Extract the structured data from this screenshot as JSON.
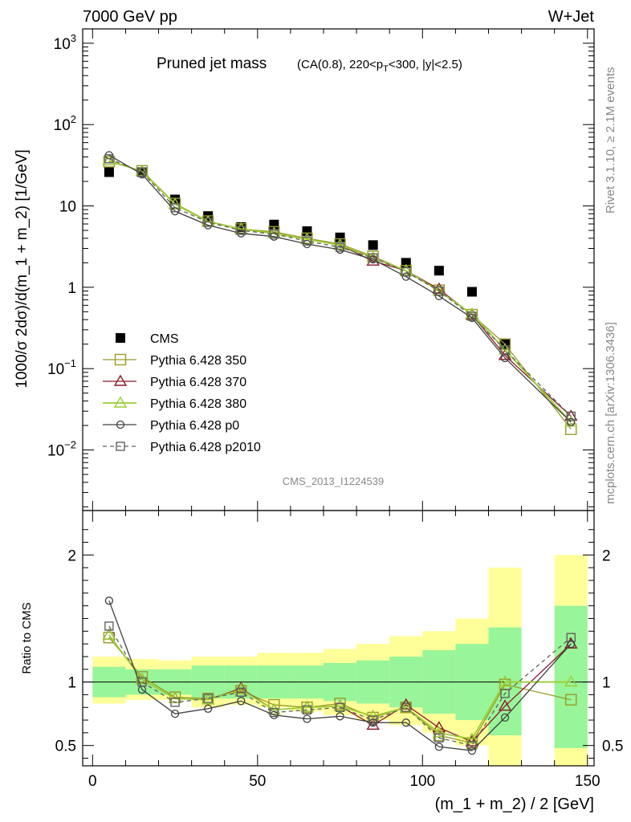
{
  "header": {
    "left": "7000 GeV pp",
    "right": "W+Jet"
  },
  "plot_title_main": "Pruned jet mass",
  "plot_title_sub": "(CA(0.8), 220<p",
  "plot_title_sub_index": "T",
  "plot_title_sub_end": "<300, |y|<2.5)",
  "side_label_top": "Rivet 3.1.10, ≥ 2.1M events",
  "side_label_bottom": "mcplots.cern.ch [arXiv:1306.3436]",
  "analysis_id": "CMS_2013_I1224539",
  "colors": {
    "cms": "#000000",
    "p350": "#9a9a2a",
    "p370": "#8b1a2b",
    "p380": "#9acd32",
    "p0": "#404040",
    "p2010": "#606060",
    "band_inner": "#99f599",
    "band_outer": "#ffff99"
  },
  "chart_data": [
    {
      "type": "scatter",
      "ylabel": "1000/σ 2dσ)/d(m_1 + m_2) [1/GeV]",
      "yscale": "log",
      "ylim": [
        0.0018,
        1500
      ],
      "xlim": [
        -3,
        152
      ],
      "y_ticks": [
        {
          "v": 1000,
          "base": "10",
          "exp": "3"
        },
        {
          "v": 100,
          "base": "10",
          "exp": "2"
        },
        {
          "v": 10,
          "base": "10",
          "exp": ""
        },
        {
          "v": 1,
          "base": "1",
          "exp": ""
        },
        {
          "v": 0.1,
          "base": "10",
          "exp": "−1"
        },
        {
          "v": 0.01,
          "base": "10",
          "exp": "−2"
        }
      ],
      "x": [
        5,
        15,
        25,
        35,
        45,
        55,
        65,
        75,
        85,
        95,
        105,
        115,
        125,
        145
      ],
      "series": [
        {
          "name": "CMS",
          "key": "cms",
          "marker": "filled-square",
          "values": [
            26,
            26,
            12,
            7.5,
            5.5,
            5.9,
            4.9,
            4.1,
            3.3,
            2.0,
            1.6,
            0.88,
            0.2,
            null
          ]
        },
        {
          "name": "Pythia 6.428 350",
          "key": "p350",
          "marker": "open-square",
          "values": [
            35,
            27,
            10.7,
            6.5,
            5.2,
            4.8,
            4.0,
            3.4,
            2.4,
            1.6,
            0.92,
            0.46,
            0.2,
            0.018
          ]
        },
        {
          "name": "Pythia 6.428 370",
          "key": "p370",
          "marker": "open-triangle",
          "values": [
            36,
            26.5,
            10.5,
            6.4,
            5.2,
            4.6,
            3.9,
            3.3,
            2.1,
            1.6,
            0.95,
            0.46,
            0.145,
            0.026
          ]
        },
        {
          "name": "Pythia 6.428 380",
          "key": "p380",
          "marker": "open-triangle",
          "values": [
            36,
            26.5,
            10.5,
            6.4,
            5.2,
            4.6,
            3.9,
            3.3,
            2.3,
            1.6,
            0.9,
            0.47,
            0.17,
            0.022
          ]
        },
        {
          "name": "Pythia 6.428 p0",
          "key": "p0",
          "marker": "open-circle",
          "values": [
            42,
            24.5,
            8.6,
            5.8,
            4.6,
            4.2,
            3.4,
            2.9,
            2.2,
            1.35,
            0.78,
            0.42,
            0.135,
            0.022
          ]
        },
        {
          "name": "Pythia 6.428 p2010",
          "key": "p2010",
          "marker": "open-square-dashed",
          "values": [
            38,
            26,
            9.5,
            6.3,
            5.0,
            4.5,
            3.7,
            3.1,
            2.3,
            1.55,
            0.9,
            0.44,
            0.17,
            0.026
          ]
        }
      ]
    },
    {
      "type": "scatter",
      "xlabel": "(m_1 + m_2) / 2 [GeV]",
      "ylabel": "Ratio to CMS",
      "ylim": [
        0.34,
        2.35
      ],
      "xlim": [
        -3,
        152
      ],
      "x_ticks": [
        0,
        50,
        100,
        150
      ],
      "y_ticks": [
        0.5,
        1,
        2
      ],
      "x": [
        5,
        15,
        25,
        35,
        45,
        55,
        65,
        75,
        85,
        95,
        105,
        115,
        125,
        145
      ],
      "band_edges": [
        0,
        10,
        20,
        30,
        40,
        50,
        60,
        70,
        80,
        90,
        100,
        110,
        120,
        130,
        140,
        150
      ],
      "band_inner": [
        [
          0.88,
          1.12
        ],
        [
          0.9,
          1.1
        ],
        [
          0.9,
          1.1
        ],
        [
          0.87,
          1.13
        ],
        [
          0.87,
          1.13
        ],
        [
          0.87,
          1.13
        ],
        [
          0.87,
          1.13
        ],
        [
          0.85,
          1.15
        ],
        [
          0.83,
          1.17
        ],
        [
          0.8,
          1.2
        ],
        [
          0.75,
          1.25
        ],
        [
          0.7,
          1.3
        ],
        [
          0.58,
          1.43
        ],
        null,
        [
          0.48,
          1.6
        ]
      ],
      "band_outer": [
        [
          0.83,
          1.2
        ],
        [
          0.86,
          1.18
        ],
        [
          0.86,
          1.17
        ],
        [
          0.8,
          1.2
        ],
        [
          0.82,
          1.2
        ],
        [
          0.8,
          1.23
        ],
        [
          0.77,
          1.23
        ],
        [
          0.74,
          1.26
        ],
        [
          0.7,
          1.3
        ],
        [
          0.66,
          1.36
        ],
        [
          0.6,
          1.4
        ],
        [
          0.5,
          1.5
        ],
        [
          0.34,
          1.9
        ],
        null,
        [
          0.34,
          2.0
        ]
      ],
      "series": [
        {
          "name": "Pythia 6.428 350",
          "key": "p350",
          "marker": "open-square",
          "values": [
            1.35,
            1.04,
            0.88,
            0.87,
            0.93,
            0.82,
            0.8,
            0.83,
            0.72,
            0.8,
            0.58,
            0.52,
            0.98,
            0.86
          ]
        },
        {
          "name": "Pythia 6.428 370",
          "key": "p370",
          "marker": "open-triangle",
          "values": [
            1.37,
            1.02,
            0.87,
            0.86,
            0.95,
            0.78,
            0.8,
            0.81,
            0.66,
            0.82,
            0.64,
            0.53,
            0.81,
            1.3
          ]
        },
        {
          "name": "Pythia 6.428 380",
          "key": "p380",
          "marker": "open-triangle",
          "values": [
            1.37,
            1.02,
            0.87,
            0.86,
            0.94,
            0.78,
            0.8,
            0.81,
            0.73,
            0.8,
            0.6,
            0.55,
            1.0,
            1.0
          ]
        },
        {
          "name": "Pythia 6.428 p0",
          "key": "p0",
          "marker": "open-circle",
          "values": [
            1.64,
            0.94,
            0.75,
            0.79,
            0.85,
            0.74,
            0.71,
            0.73,
            0.68,
            0.68,
            0.49,
            0.46,
            0.72,
            1.3
          ]
        },
        {
          "name": "Pythia 6.428 p2010",
          "key": "p2010",
          "marker": "open-square-dashed",
          "values": [
            1.44,
            1.0,
            0.84,
            0.87,
            0.92,
            0.76,
            0.78,
            0.8,
            0.7,
            0.8,
            0.56,
            0.5,
            0.91,
            1.35
          ]
        }
      ]
    }
  ]
}
